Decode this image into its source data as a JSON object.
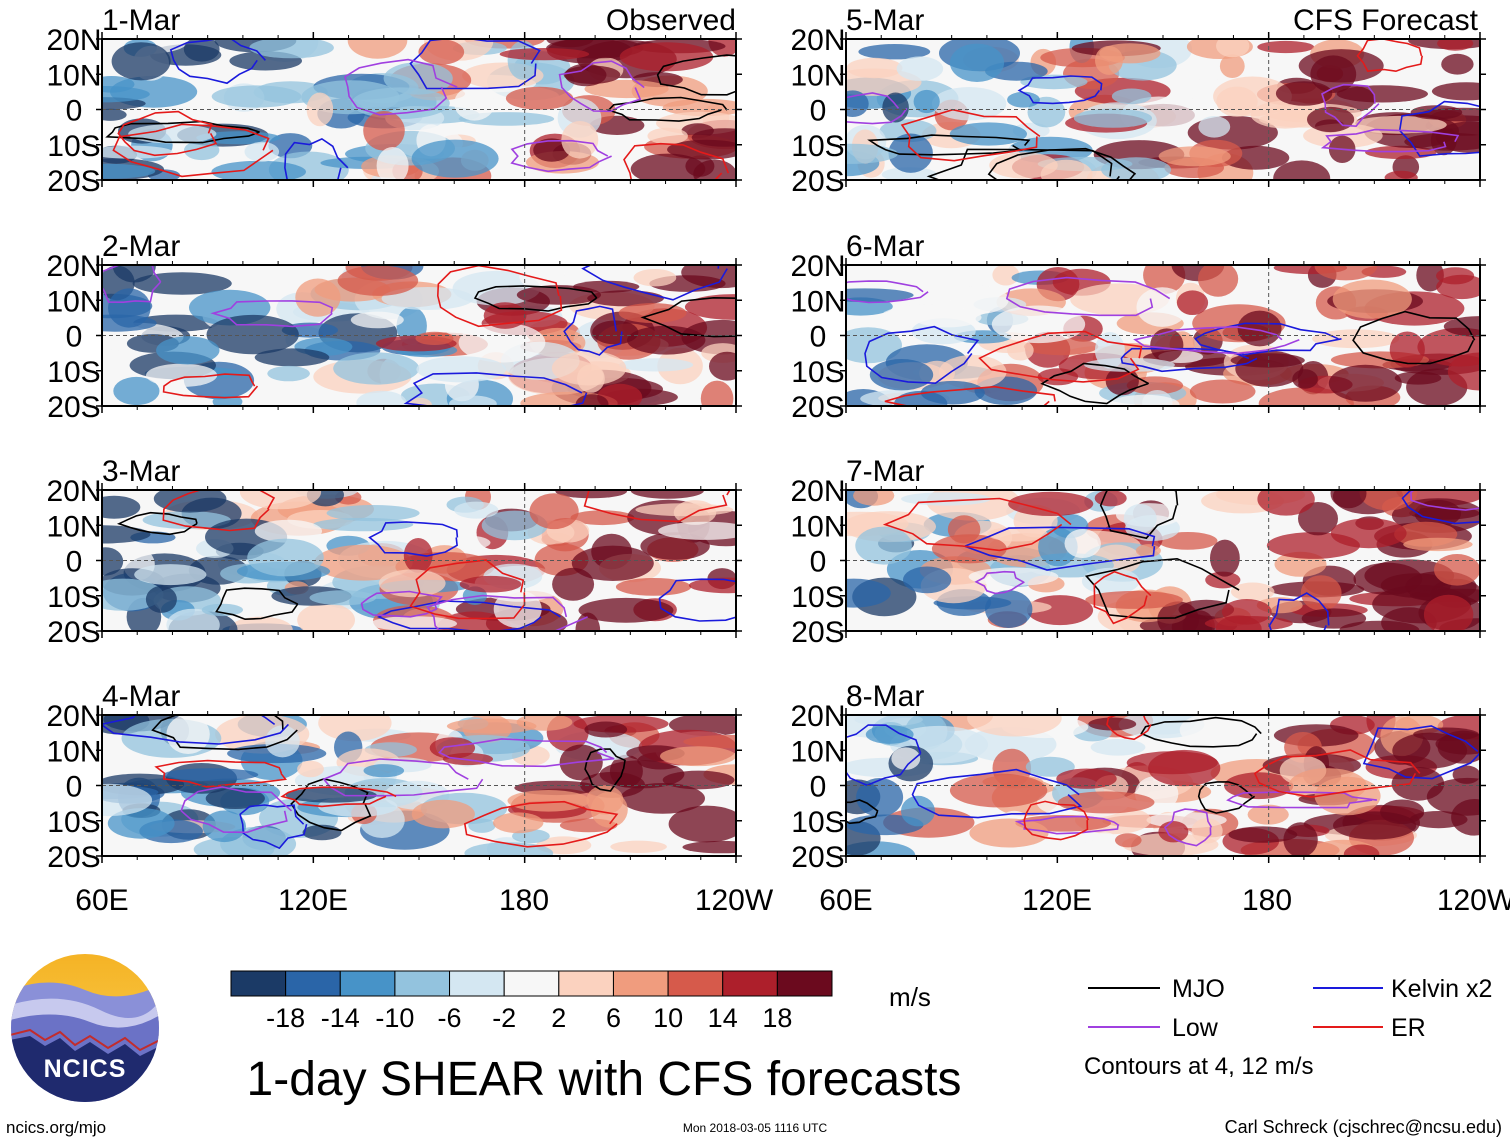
{
  "title": "1-day SHEAR with CFS forecasts",
  "branding": {
    "logo_text": "NCICS",
    "site": "ncics.org/mjo"
  },
  "timestamp": "Mon 2018-03-05 1116 UTC",
  "author": "Carl Schreck (cjschrec@ncsu.edu)",
  "column_labels": {
    "left": "Observed",
    "right": "CFS Forecast"
  },
  "chart_data": {
    "type": "heatmap",
    "panels": [
      {
        "date": "1-Mar",
        "column": "Observed"
      },
      {
        "date": "2-Mar",
        "column": "Observed"
      },
      {
        "date": "3-Mar",
        "column": "Observed"
      },
      {
        "date": "4-Mar",
        "column": "Observed"
      },
      {
        "date": "5-Mar",
        "column": "CFS Forecast"
      },
      {
        "date": "6-Mar",
        "column": "CFS Forecast"
      },
      {
        "date": "7-Mar",
        "column": "CFS Forecast"
      },
      {
        "date": "8-Mar",
        "column": "CFS Forecast"
      }
    ],
    "x_axis": {
      "ticks": [
        "60E",
        "120E",
        "180",
        "120W"
      ],
      "range": [
        60,
        240
      ]
    },
    "y_axis": {
      "ticks": [
        "20N",
        "10N",
        "0",
        "10S",
        "20S"
      ],
      "range": [
        -20,
        20
      ]
    },
    "colorbar": {
      "units": "m/s",
      "tick_labels": [
        "-18",
        "-14",
        "-10",
        "-6",
        "-2",
        "2",
        "6",
        "10",
        "14",
        "18"
      ],
      "colors": [
        "#1b3a66",
        "#2a65a8",
        "#4793c8",
        "#93c3de",
        "#d4e7f2",
        "#f7f7f7",
        "#fbd2bf",
        "#f09c7e",
        "#d65a4b",
        "#ad1f2b",
        "#6b0a1e"
      ]
    },
    "legend": [
      {
        "label": "MJO",
        "color": "#000000"
      },
      {
        "label": "Kelvin x2",
        "color": "#1a1adc"
      },
      {
        "label": "Low",
        "color": "#a040e0"
      },
      {
        "label": "ER",
        "color": "#e41a1a"
      }
    ],
    "contour_note": "Contours at 4, 12 m/s"
  }
}
